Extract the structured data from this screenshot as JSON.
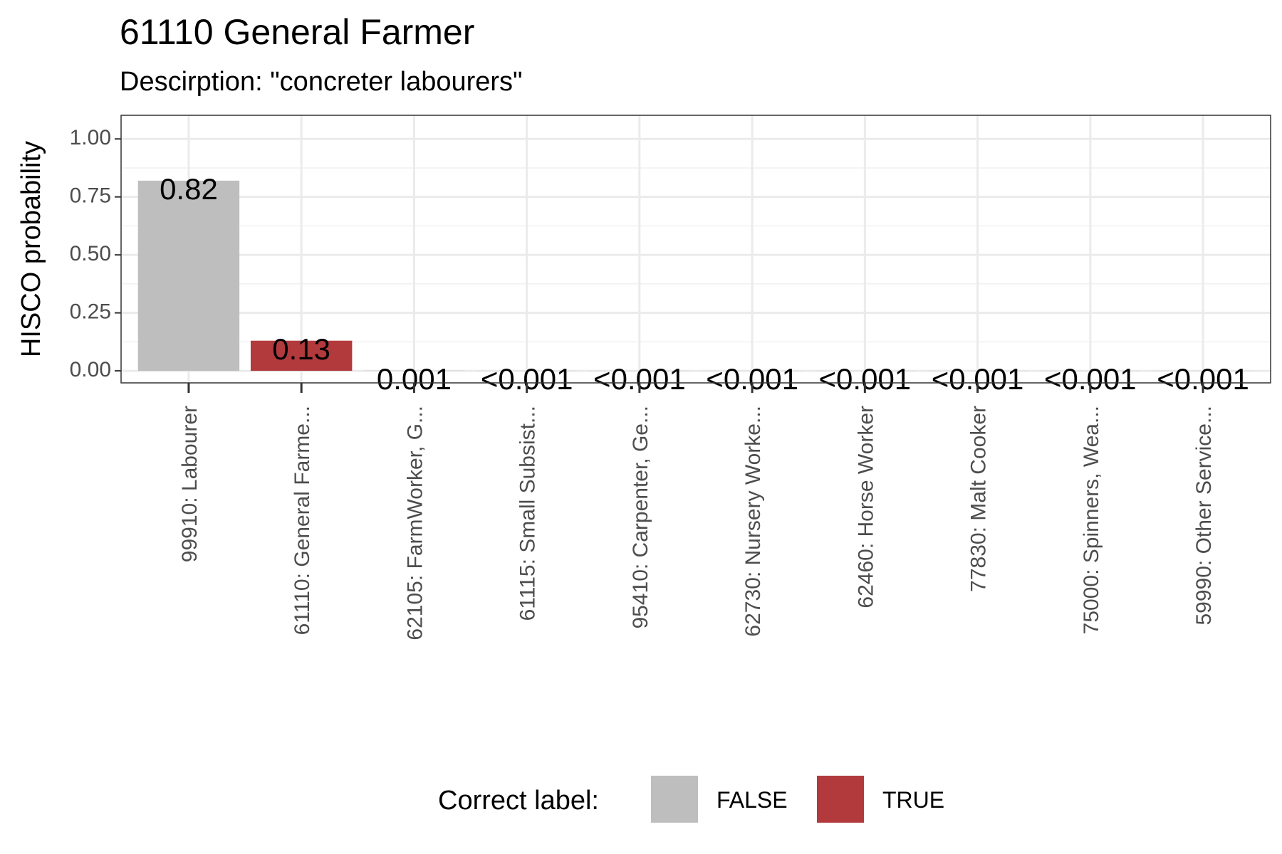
{
  "chart_data": {
    "type": "bar",
    "title": "61110 General Farmer",
    "subtitle": "Descirption: \"concreter labourers\"",
    "ylabel": "HISCO probability",
    "xlabel": "",
    "ylim": [
      0,
      1.05
    ],
    "yticks": [
      "0.00",
      "0.25",
      "0.50",
      "0.75",
      "1.00"
    ],
    "ytick_values": [
      0,
      0.25,
      0.5,
      0.75,
      1.0
    ],
    "grid": true,
    "categories": [
      "99910: Labourer",
      "61110: General Farme...",
      "62105: FarmWorker, G...",
      "61115: Small Subsist...",
      "95410: Carpenter, Ge...",
      "62730: Nursery Worke...",
      "62460: Horse Worker",
      "77830: Malt Cooker",
      "75000: Spinners, Wea...",
      "59990: Other Service..."
    ],
    "values": [
      0.82,
      0.13,
      0.001,
      0.0005,
      0.0005,
      0.0005,
      0.0005,
      0.0005,
      0.0005,
      0.0005
    ],
    "data_labels": [
      "0.82",
      "0.13",
      "0.001",
      "<0.001",
      "<0.001",
      "<0.001",
      "<0.001",
      "<0.001",
      "<0.001",
      "<0.001"
    ],
    "correct": [
      false,
      true,
      false,
      false,
      false,
      false,
      false,
      false,
      false,
      false
    ],
    "legend": {
      "title": "Correct label:",
      "position": "bottom",
      "items": [
        {
          "label": "FALSE",
          "color": "#bebebe"
        },
        {
          "label": "TRUE",
          "color": "#b23a3c"
        }
      ]
    }
  }
}
